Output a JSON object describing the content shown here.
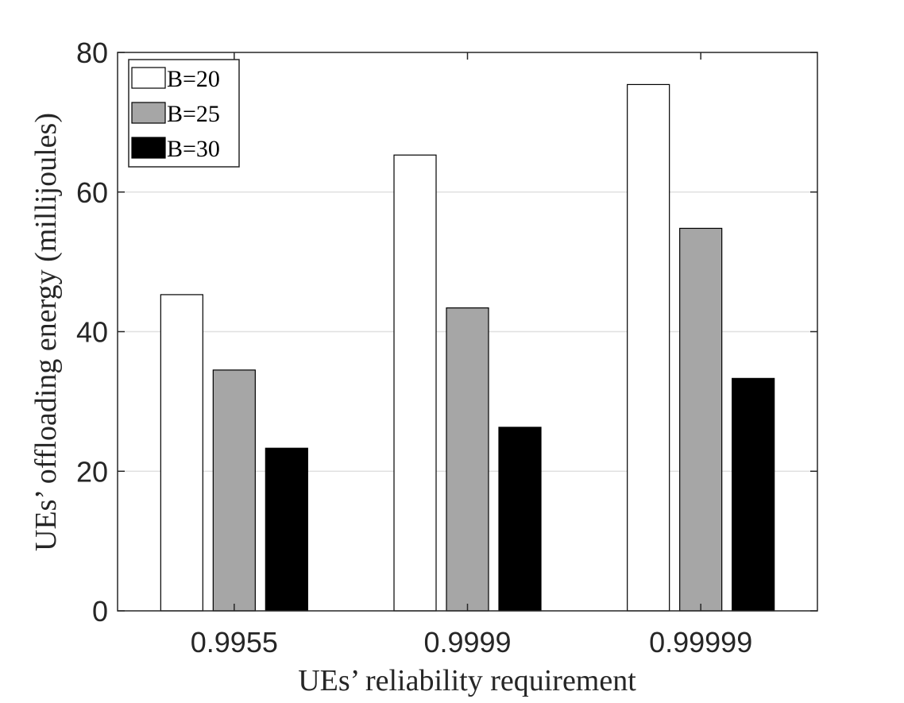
{
  "chart_data": {
    "type": "bar",
    "title": "",
    "xlabel": "UEs’ reliability requirement",
    "ylabel": "UEs’ offloading energy (millijoules)",
    "categories": [
      "0.9955",
      "0.9999",
      "0.99999"
    ],
    "series": [
      {
        "name": "B=20",
        "color": "#ffffff",
        "values": [
          45.3,
          65.3,
          75.4
        ]
      },
      {
        "name": "B=25",
        "color": "#a6a6a6",
        "values": [
          34.5,
          43.4,
          54.8
        ]
      },
      {
        "name": "B=30",
        "color": "#000000",
        "values": [
          23.3,
          26.3,
          33.3
        ]
      }
    ],
    "ylim": [
      0,
      80
    ],
    "yticks": [
      "0",
      "20",
      "40",
      "60",
      "80"
    ],
    "grid": "horizontal",
    "legend_position": "top-left"
  }
}
